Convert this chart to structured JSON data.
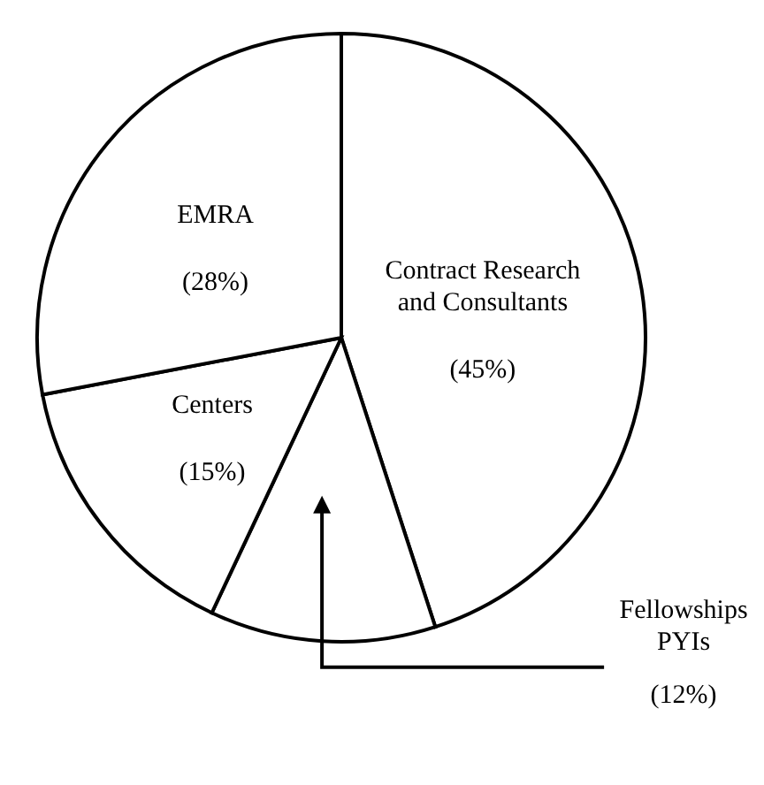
{
  "chart_data": {
    "type": "pie",
    "categories": [
      "Contract Research\nand Consultants",
      "Fellowships\nPYIs",
      "Centers",
      "EMRA"
    ],
    "values": [
      45,
      12,
      15,
      28
    ],
    "colors": [
      "#ffffff",
      "#ffffff",
      "#ffffff",
      "#ffffff"
    ],
    "value_labels": [
      "(45%)",
      "(12%)",
      "(15%)",
      "(28%)"
    ]
  }
}
